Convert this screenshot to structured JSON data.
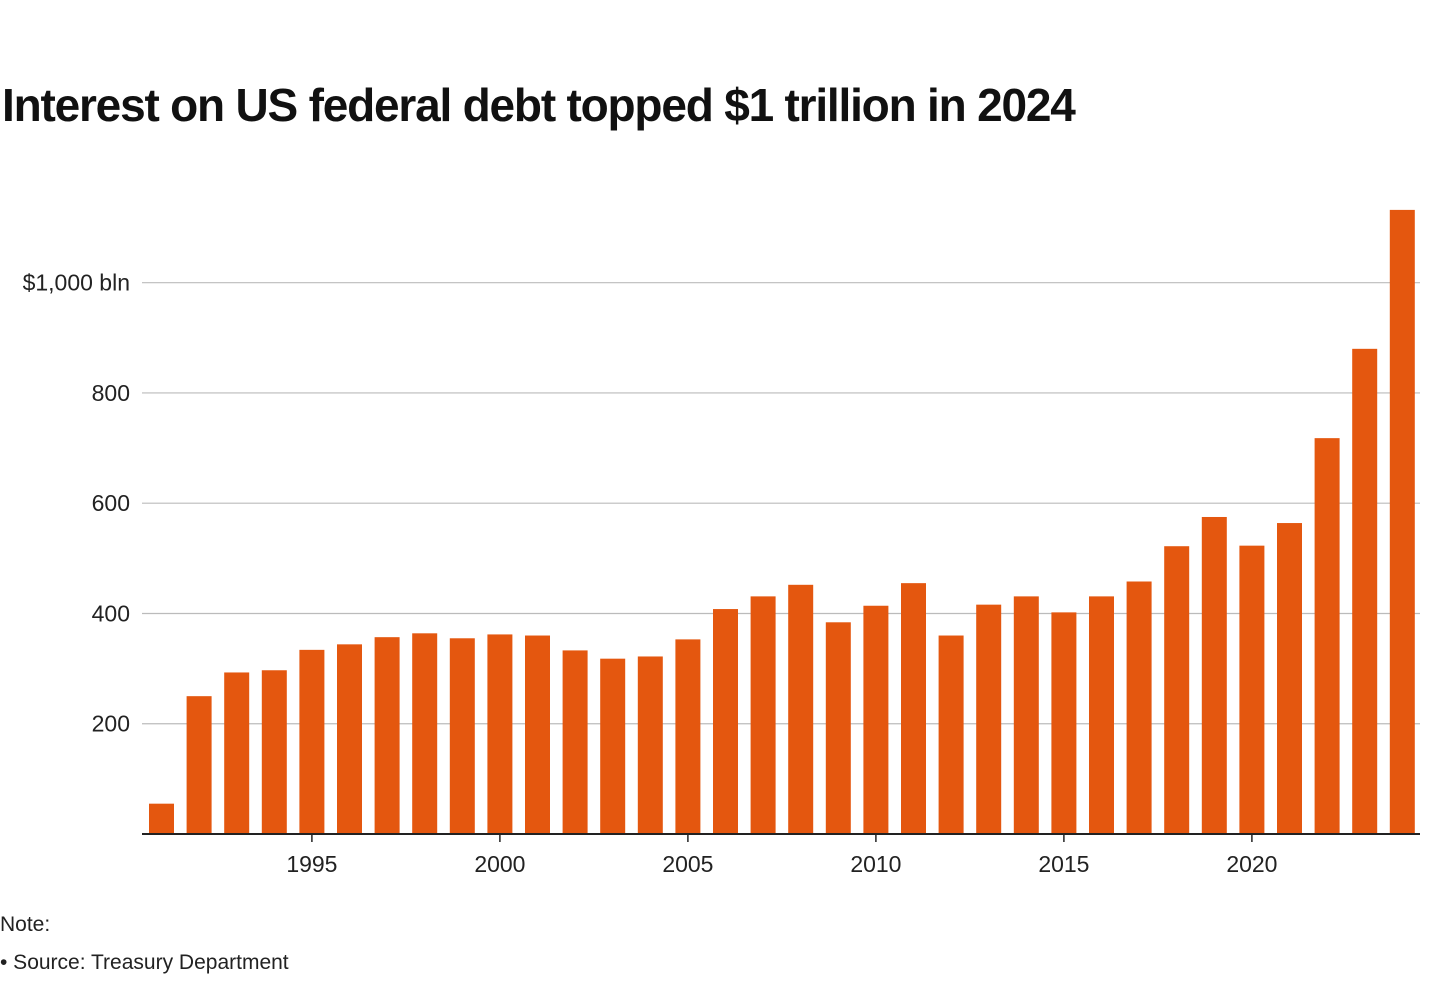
{
  "title": "Interest on US federal debt topped $1 trillion in 2024",
  "note_label": "Note:",
  "source_text": "• Source: Treasury Department",
  "colors": {
    "bar": "#E4570F",
    "grid": "#bbbbbb",
    "axis": "#222222"
  },
  "chart_data": {
    "type": "bar",
    "title": "Interest on US federal debt topped $1 trillion in 2024",
    "xlabel": "",
    "ylabel": "",
    "ylim": [
      0,
      1130
    ],
    "yticks": [
      200,
      400,
      600,
      800,
      1000
    ],
    "ytick_labels": [
      "200",
      "400",
      "600",
      "800",
      "$1,000 bln"
    ],
    "xticks": [
      1995,
      2000,
      2005,
      2010,
      2015,
      2020
    ],
    "xtick_labels": [
      "1995",
      "2000",
      "2005",
      "2010",
      "2015",
      "2020"
    ],
    "categories": [
      1991,
      1992,
      1993,
      1994,
      1995,
      1996,
      1997,
      1998,
      1999,
      2000,
      2001,
      2002,
      2003,
      2004,
      2005,
      2006,
      2007,
      2008,
      2009,
      2010,
      2011,
      2012,
      2013,
      2014,
      2015,
      2016,
      2017,
      2018,
      2019,
      2020,
      2021,
      2022,
      2023,
      2024
    ],
    "values": [
      55,
      250,
      293,
      297,
      334,
      344,
      357,
      364,
      355,
      362,
      360,
      333,
      318,
      322,
      353,
      408,
      431,
      452,
      384,
      414,
      455,
      360,
      416,
      431,
      402,
      431,
      458,
      522,
      575,
      523,
      564,
      718,
      880,
      1132
    ]
  }
}
